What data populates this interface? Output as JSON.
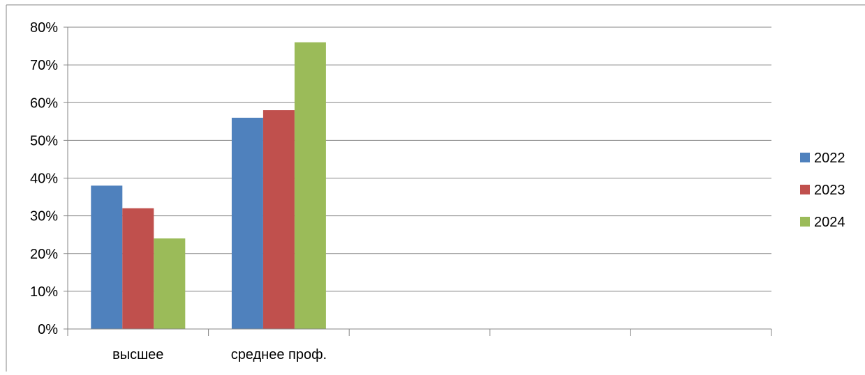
{
  "chart_data": {
    "type": "bar",
    "categories": [
      "высшее",
      "среднее проф.",
      "",
      "",
      ""
    ],
    "series": [
      {
        "name": "2022",
        "values": [
          0.38,
          0.56,
          null,
          null,
          null
        ],
        "color": "#4F81BD"
      },
      {
        "name": "2023",
        "values": [
          0.32,
          0.58,
          null,
          null,
          null
        ],
        "color": "#C0504D"
      },
      {
        "name": "2024",
        "values": [
          0.24,
          0.76,
          null,
          null,
          null
        ],
        "color": "#9BBB59"
      }
    ],
    "yticks": [
      "0%",
      "10%",
      "20%",
      "30%",
      "40%",
      "50%",
      "60%",
      "70%",
      "80%"
    ],
    "ylim": [
      0,
      0.8
    ],
    "grid": true,
    "legend": "right",
    "title": "",
    "xlabel": "",
    "ylabel": ""
  }
}
